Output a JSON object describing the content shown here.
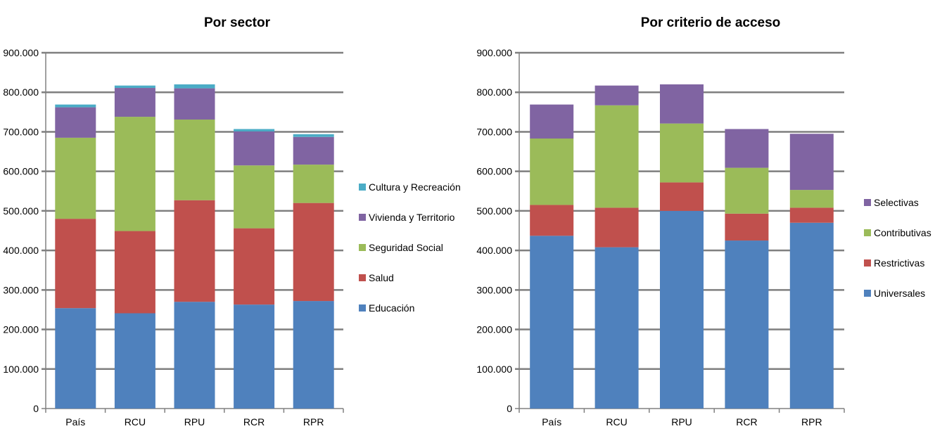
{
  "chart_data": [
    {
      "type": "bar",
      "stacked": true,
      "title": "Por sector",
      "categories": [
        "País",
        "RCU",
        "RPU",
        "RCR",
        "RPR"
      ],
      "ylim": [
        0,
        900000
      ],
      "yticks": [
        "0",
        "100.000",
        "200.000",
        "300.000",
        "400.000",
        "500.000",
        "600.000",
        "700.000",
        "800.000",
        "900.000"
      ],
      "grid": true,
      "legend_position": "right",
      "series": [
        {
          "name": "Educación",
          "color": "#4F81BD",
          "values": [
            254000,
            241000,
            270000,
            263000,
            272000
          ]
        },
        {
          "name": "Salud",
          "color": "#C0504D",
          "values": [
            226000,
            208000,
            257000,
            193000,
            248000
          ]
        },
        {
          "name": "Seguridad Social",
          "color": "#9BBB59",
          "values": [
            205000,
            289000,
            204000,
            159000,
            97000
          ]
        },
        {
          "name": "Vivienda y Territorio",
          "color": "#8064A2",
          "values": [
            77000,
            73000,
            79000,
            86000,
            70000
          ]
        },
        {
          "name": "Cultura y Recreación",
          "color": "#4BACC6",
          "values": [
            7000,
            6000,
            10000,
            6000,
            7000
          ]
        }
      ]
    },
    {
      "type": "bar",
      "stacked": true,
      "title": "Por criterio de acceso",
      "categories": [
        "País",
        "RCU",
        "RPU",
        "RCR",
        "RPR"
      ],
      "ylim": [
        0,
        900000
      ],
      "yticks": [
        "0",
        "100.000",
        "200.000",
        "300.000",
        "400.000",
        "500.000",
        "600.000",
        "700.000",
        "800.000",
        "900.000"
      ],
      "grid": true,
      "legend_position": "right",
      "series": [
        {
          "name": "Universales",
          "color": "#4F81BD",
          "values": [
            437000,
            408000,
            500000,
            425000,
            470000
          ]
        },
        {
          "name": "Restrictivas",
          "color": "#C0504D",
          "values": [
            78000,
            100000,
            72000,
            68000,
            38000
          ]
        },
        {
          "name": "Contributivas",
          "color": "#9BBB59",
          "values": [
            168000,
            259000,
            149000,
            116000,
            45000
          ]
        },
        {
          "name": "Selectivas",
          "color": "#8064A2",
          "values": [
            86000,
            50000,
            99000,
            98000,
            142000
          ]
        }
      ]
    }
  ]
}
